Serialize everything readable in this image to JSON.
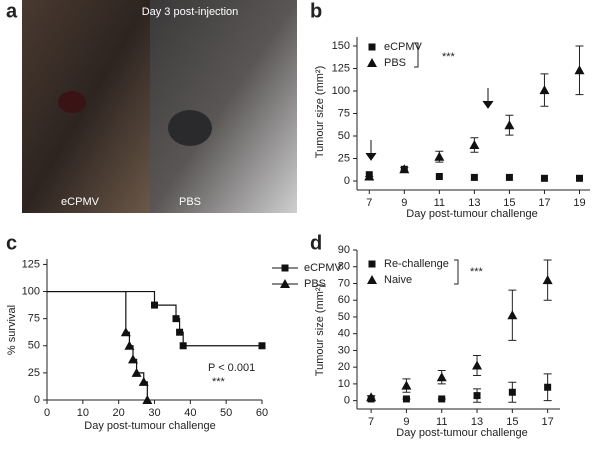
{
  "panel_labels": [
    "a",
    "b",
    "c",
    "d"
  ],
  "panel_a": {
    "caption": "Day 3 post-injection",
    "labels": [
      "eCPMV",
      "PBS"
    ]
  },
  "chart_data": [
    {
      "type": "scatter",
      "xlabel": "Day post-tumour challenge",
      "ylabel": "Tumour size (mm²)",
      "annotation": "***",
      "legend": "upper left",
      "xlim": [
        6.3,
        19.6
      ],
      "xticks": [
        7,
        9,
        11,
        13,
        15,
        17,
        19
      ],
      "ylim": [
        -10,
        160
      ],
      "yticks": [
        0,
        25,
        50,
        75,
        100,
        125,
        150
      ],
      "x": [
        7,
        9,
        11,
        13,
        15,
        17,
        19
      ],
      "series": [
        {
          "name": "eCPMV",
          "marker": "square",
          "color": "#111111",
          "values": [
            7,
            13,
            5,
            4,
            4,
            3,
            3
          ]
        },
        {
          "name": "PBS",
          "marker": "triangle",
          "color": "#111111",
          "values": [
            5,
            13,
            27,
            40,
            62,
            101,
            123
          ],
          "errors": [
            0,
            2,
            6,
            8,
            11,
            18,
            27
          ]
        }
      ]
    },
    {
      "type": "line",
      "step": true,
      "xlabel": "Day post-tumour challenge",
      "ylabel": "% survival",
      "annotation": "P < 0.001",
      "annotation2": "***",
      "legend": "upper right",
      "xlim": [
        0,
        60
      ],
      "xticks": [
        0,
        10,
        20,
        30,
        40,
        50,
        60
      ],
      "ylim": [
        0,
        130
      ],
      "yticks": [
        0,
        25,
        50,
        75,
        100,
        125
      ],
      "series": [
        {
          "name": "eCPMV",
          "marker": "square",
          "color": "#111111",
          "x": [
            0,
            30,
            36,
            37,
            38,
            60
          ],
          "values": [
            100,
            87.5,
            75,
            62.5,
            50,
            50
          ]
        },
        {
          "name": "PBS",
          "marker": "triangle",
          "color": "#111111",
          "x": [
            0,
            22,
            23,
            24,
            25,
            27,
            28
          ],
          "values": [
            100,
            62.5,
            50,
            37.5,
            25,
            16.7,
            0
          ]
        }
      ]
    },
    {
      "type": "scatter",
      "xlabel": "Day post-tumour challenge",
      "ylabel": "Tumour size (mm²)",
      "annotation": "***",
      "legend": "upper left",
      "xlim": [
        6.2,
        17.7
      ],
      "xticks": [
        7,
        9,
        11,
        13,
        15,
        17
      ],
      "ylim": [
        -5,
        90
      ],
      "yticks": [
        0,
        10,
        20,
        30,
        40,
        50,
        60,
        70,
        80,
        90
      ],
      "x": [
        7,
        9,
        11,
        13,
        15,
        17
      ],
      "series": [
        {
          "name": "Re-challenge",
          "marker": "square",
          "color": "#111111",
          "values": [
            1,
            1,
            1,
            3,
            5,
            8
          ],
          "errors": [
            0,
            0,
            0,
            4,
            6,
            8
          ]
        },
        {
          "name": "Naive",
          "marker": "triangle",
          "color": "#111111",
          "values": [
            2,
            9,
            14,
            21,
            51,
            72
          ],
          "errors": [
            1,
            4,
            4,
            6,
            15,
            12
          ]
        }
      ]
    }
  ]
}
